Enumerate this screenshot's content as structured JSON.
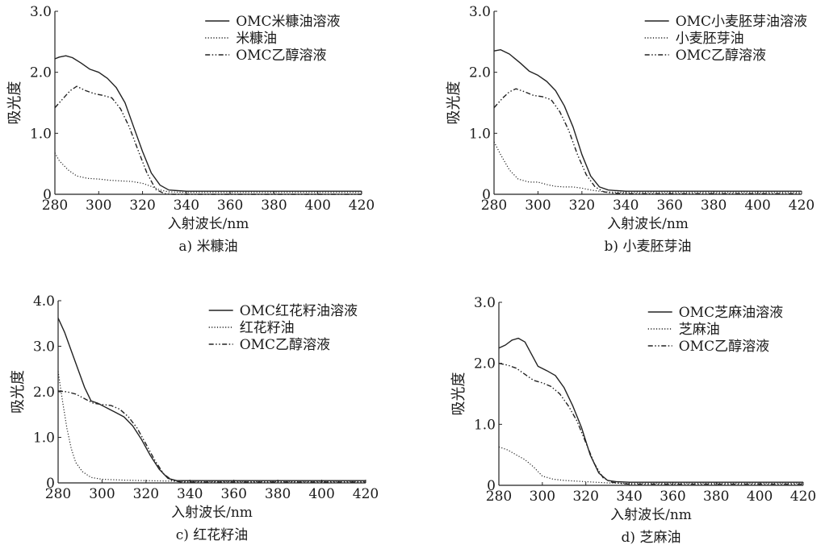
{
  "chart_data": [
    {
      "type": "line",
      "caption": "a) 米糠油",
      "xlabel": "入射波长/nm",
      "ylabel": "吸光度",
      "xlim": [
        280,
        420
      ],
      "ylim": [
        0,
        3.0
      ],
      "xticks": [
        "280",
        "300",
        "320",
        "340",
        "360",
        "380",
        "400",
        "420"
      ],
      "yticks": [
        "0",
        "1.0",
        "2.0",
        "3.0"
      ],
      "series": [
        {
          "name": "OMC米糠油溶液",
          "style": "solid",
          "points": [
            [
              280,
              2.22
            ],
            [
              282,
              2.25
            ],
            [
              285,
              2.27
            ],
            [
              288,
              2.24
            ],
            [
              292,
              2.15
            ],
            [
              296,
              2.05
            ],
            [
              300,
              2.0
            ],
            [
              304,
              1.9
            ],
            [
              308,
              1.75
            ],
            [
              312,
              1.5
            ],
            [
              316,
              1.1
            ],
            [
              320,
              0.7
            ],
            [
              324,
              0.35
            ],
            [
              328,
              0.15
            ],
            [
              332,
              0.07
            ],
            [
              336,
              0.06
            ],
            [
              340,
              0.05
            ],
            [
              360,
              0.05
            ],
            [
              380,
              0.05
            ],
            [
              400,
              0.05
            ],
            [
              420,
              0.05
            ]
          ]
        },
        {
          "name": "米糠油",
          "style": "dotted",
          "points": [
            [
              280,
              0.68
            ],
            [
              282,
              0.55
            ],
            [
              286,
              0.4
            ],
            [
              290,
              0.3
            ],
            [
              295,
              0.26
            ],
            [
              300,
              0.25
            ],
            [
              305,
              0.23
            ],
            [
              310,
              0.22
            ],
            [
              315,
              0.21
            ],
            [
              320,
              0.18
            ],
            [
              324,
              0.13
            ],
            [
              328,
              0.07
            ],
            [
              332,
              0.04
            ],
            [
              340,
              0.03
            ],
            [
              360,
              0.03
            ],
            [
              380,
              0.03
            ],
            [
              400,
              0.03
            ],
            [
              420,
              0.03
            ]
          ]
        },
        {
          "name": "OMC乙醇溶液",
          "style": "dashdot",
          "points": [
            [
              280,
              1.42
            ],
            [
              284,
              1.58
            ],
            [
              287,
              1.7
            ],
            [
              290,
              1.77
            ],
            [
              294,
              1.7
            ],
            [
              298,
              1.65
            ],
            [
              302,
              1.62
            ],
            [
              306,
              1.58
            ],
            [
              310,
              1.4
            ],
            [
              314,
              1.1
            ],
            [
              318,
              0.72
            ],
            [
              322,
              0.35
            ],
            [
              326,
              0.08
            ],
            [
              330,
              0.01
            ],
            [
              334,
              0.0
            ],
            [
              340,
              0.0
            ],
            [
              360,
              0.0
            ],
            [
              380,
              0.0
            ],
            [
              400,
              0.0
            ],
            [
              420,
              0.0
            ]
          ]
        }
      ]
    },
    {
      "type": "line",
      "caption": "b) 小麦胚芽油",
      "xlabel": "入射波长/nm",
      "ylabel": "吸光度",
      "xlim": [
        280,
        420
      ],
      "ylim": [
        0,
        3.0
      ],
      "xticks": [
        "280",
        "300",
        "320",
        "340",
        "360",
        "380",
        "400",
        "420"
      ],
      "yticks": [
        "0",
        "1.0",
        "2.0",
        "3.0"
      ],
      "series": [
        {
          "name": "OMC小麦胚芽油溶液",
          "style": "solid",
          "points": [
            [
              280,
              2.35
            ],
            [
              283,
              2.37
            ],
            [
              287,
              2.3
            ],
            [
              292,
              2.15
            ],
            [
              296,
              2.02
            ],
            [
              300,
              1.95
            ],
            [
              304,
              1.85
            ],
            [
              308,
              1.7
            ],
            [
              312,
              1.45
            ],
            [
              316,
              1.1
            ],
            [
              320,
              0.65
            ],
            [
              324,
              0.3
            ],
            [
              328,
              0.12
            ],
            [
              332,
              0.07
            ],
            [
              336,
              0.06
            ],
            [
              340,
              0.05
            ],
            [
              360,
              0.05
            ],
            [
              380,
              0.05
            ],
            [
              400,
              0.05
            ],
            [
              420,
              0.05
            ]
          ]
        },
        {
          "name": "小麦胚芽油",
          "style": "dotted",
          "points": [
            [
              280,
              0.86
            ],
            [
              283,
              0.65
            ],
            [
              287,
              0.4
            ],
            [
              291,
              0.25
            ],
            [
              296,
              0.2
            ],
            [
              300,
              0.2
            ],
            [
              304,
              0.16
            ],
            [
              308,
              0.13
            ],
            [
              312,
              0.12
            ],
            [
              316,
              0.12
            ],
            [
              320,
              0.1
            ],
            [
              324,
              0.07
            ],
            [
              330,
              0.04
            ],
            [
              340,
              0.03
            ],
            [
              360,
              0.03
            ],
            [
              380,
              0.03
            ],
            [
              400,
              0.03
            ],
            [
              420,
              0.03
            ]
          ]
        },
        {
          "name": "OMC乙醇溶液",
          "style": "dashdot",
          "points": [
            [
              280,
              1.42
            ],
            [
              284,
              1.58
            ],
            [
              287,
              1.68
            ],
            [
              290,
              1.73
            ],
            [
              294,
              1.68
            ],
            [
              298,
              1.62
            ],
            [
              302,
              1.6
            ],
            [
              306,
              1.55
            ],
            [
              310,
              1.35
            ],
            [
              314,
              1.05
            ],
            [
              318,
              0.65
            ],
            [
              322,
              0.32
            ],
            [
              326,
              0.12
            ],
            [
              330,
              0.04
            ],
            [
              334,
              0.02
            ],
            [
              340,
              0.01
            ],
            [
              360,
              0.01
            ],
            [
              380,
              0.01
            ],
            [
              400,
              0.01
            ],
            [
              420,
              0.01
            ]
          ]
        }
      ]
    },
    {
      "type": "line",
      "caption": "c) 红花籽油",
      "xlabel": "入射波长/nm",
      "ylabel": "吸光度",
      "xlim": [
        280,
        420
      ],
      "ylim": [
        0,
        4.0
      ],
      "xticks": [
        "280",
        "300",
        "320",
        "340",
        "360",
        "380",
        "400",
        "420"
      ],
      "yticks": [
        "0",
        "1.0",
        "2.0",
        "3.0",
        "4.0"
      ],
      "series": [
        {
          "name": "OMC红花籽油溶液",
          "style": "solid",
          "points": [
            [
              280,
              3.62
            ],
            [
              283,
              3.3
            ],
            [
              286,
              2.9
            ],
            [
              289,
              2.5
            ],
            [
              292,
              2.1
            ],
            [
              295,
              1.8
            ],
            [
              298,
              1.75
            ],
            [
              302,
              1.65
            ],
            [
              306,
              1.55
            ],
            [
              310,
              1.45
            ],
            [
              314,
              1.25
            ],
            [
              318,
              0.95
            ],
            [
              322,
              0.6
            ],
            [
              326,
              0.3
            ],
            [
              330,
              0.1
            ],
            [
              334,
              0.05
            ],
            [
              340,
              0.05
            ],
            [
              360,
              0.05
            ],
            [
              380,
              0.05
            ],
            [
              400,
              0.05
            ],
            [
              420,
              0.05
            ]
          ]
        },
        {
          "name": "红花籽油",
          "style": "dotted",
          "points": [
            [
              280,
              2.45
            ],
            [
              282,
              1.8
            ],
            [
              284,
              1.2
            ],
            [
              286,
              0.75
            ],
            [
              288,
              0.45
            ],
            [
              291,
              0.25
            ],
            [
              295,
              0.12
            ],
            [
              300,
              0.08
            ],
            [
              310,
              0.06
            ],
            [
              320,
              0.05
            ],
            [
              330,
              0.04
            ],
            [
              340,
              0.03
            ],
            [
              360,
              0.03
            ],
            [
              380,
              0.03
            ],
            [
              400,
              0.03
            ],
            [
              420,
              0.03
            ]
          ]
        },
        {
          "name": "OMC乙醇溶液",
          "style": "dashdot",
          "points": [
            [
              280,
              2.02
            ],
            [
              284,
              2.0
            ],
            [
              288,
              1.95
            ],
            [
              292,
              1.85
            ],
            [
              296,
              1.75
            ],
            [
              300,
              1.72
            ],
            [
              304,
              1.7
            ],
            [
              308,
              1.62
            ],
            [
              312,
              1.45
            ],
            [
              316,
              1.2
            ],
            [
              320,
              0.85
            ],
            [
              324,
              0.5
            ],
            [
              328,
              0.2
            ],
            [
              332,
              0.05
            ],
            [
              336,
              0.02
            ],
            [
              340,
              0.02
            ],
            [
              360,
              0.02
            ],
            [
              380,
              0.02
            ],
            [
              400,
              0.02
            ],
            [
              420,
              0.02
            ]
          ]
        }
      ]
    },
    {
      "type": "line",
      "caption": "d) 芝麻油",
      "xlabel": "入射波长/nm",
      "ylabel": "吸光度",
      "xlim": [
        280,
        420
      ],
      "ylim": [
        0,
        3.0
      ],
      "xticks": [
        "280",
        "300",
        "320",
        "340",
        "360",
        "380",
        "400",
        "420"
      ],
      "yticks": [
        "0",
        "1.0",
        "2.0",
        "3.0"
      ],
      "series": [
        {
          "name": "OMC芝麻油溶液",
          "style": "solid",
          "points": [
            [
              280,
              2.25
            ],
            [
              283,
              2.3
            ],
            [
              286,
              2.38
            ],
            [
              289,
              2.41
            ],
            [
              292,
              2.35
            ],
            [
              295,
              2.15
            ],
            [
              298,
              1.95
            ],
            [
              302,
              1.88
            ],
            [
              306,
              1.8
            ],
            [
              310,
              1.6
            ],
            [
              314,
              1.3
            ],
            [
              318,
              0.95
            ],
            [
              322,
              0.5
            ],
            [
              326,
              0.2
            ],
            [
              330,
              0.08
            ],
            [
              334,
              0.06
            ],
            [
              340,
              0.05
            ],
            [
              360,
              0.05
            ],
            [
              380,
              0.05
            ],
            [
              400,
              0.05
            ],
            [
              420,
              0.05
            ]
          ]
        },
        {
          "name": "芝麻油",
          "style": "dotted",
          "points": [
            [
              280,
              0.63
            ],
            [
              284,
              0.58
            ],
            [
              288,
              0.5
            ],
            [
              292,
              0.42
            ],
            [
              296,
              0.3
            ],
            [
              300,
              0.15
            ],
            [
              305,
              0.1
            ],
            [
              310,
              0.08
            ],
            [
              320,
              0.06
            ],
            [
              330,
              0.04
            ],
            [
              340,
              0.03
            ],
            [
              360,
              0.03
            ],
            [
              380,
              0.03
            ],
            [
              400,
              0.03
            ],
            [
              420,
              0.03
            ]
          ]
        },
        {
          "name": "OMC乙醇溶液",
          "style": "dashdot",
          "points": [
            [
              280,
              2.0
            ],
            [
              284,
              1.97
            ],
            [
              288,
              1.92
            ],
            [
              292,
              1.82
            ],
            [
              296,
              1.72
            ],
            [
              300,
              1.68
            ],
            [
              304,
              1.62
            ],
            [
              308,
              1.5
            ],
            [
              312,
              1.3
            ],
            [
              316,
              1.05
            ],
            [
              320,
              0.7
            ],
            [
              324,
              0.35
            ],
            [
              328,
              0.12
            ],
            [
              332,
              0.05
            ],
            [
              336,
              0.03
            ],
            [
              340,
              0.02
            ],
            [
              360,
              0.02
            ],
            [
              380,
              0.02
            ],
            [
              400,
              0.02
            ],
            [
              420,
              0.02
            ]
          ]
        }
      ]
    }
  ]
}
